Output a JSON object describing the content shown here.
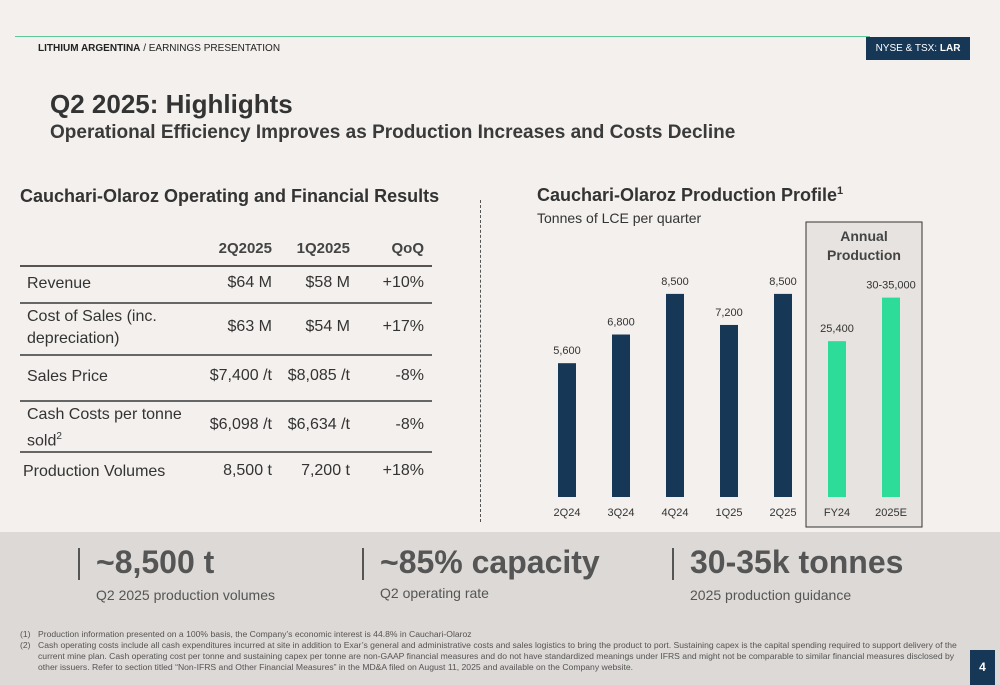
{
  "header": {
    "company": "LITHIUM ARGENTINA",
    "section": "/ EARNINGS PRESENTATION",
    "ticker_prefix": "NYSE & TSX:",
    "ticker": "LAR"
  },
  "title": "Q2 2025: Highlights",
  "subtitle": "Operational Efficiency Improves as Production Increases and Costs Decline",
  "table": {
    "title": "Cauchari-Olaroz Operating and Financial Results",
    "columns": [
      "2Q2025",
      "1Q2025",
      "QoQ"
    ],
    "rows": [
      {
        "label": [
          "Revenue"
        ],
        "cells": [
          "$64 M",
          "$58 M",
          "+10%"
        ]
      },
      {
        "label": [
          "Cost of Sales (inc.",
          "depreciation)"
        ],
        "cells": [
          "$63 M",
          "$54 M",
          "+17%"
        ]
      },
      {
        "label": [
          "Sales Price"
        ],
        "cells": [
          "$7,400 /t",
          "$8,085 /t",
          "-8%"
        ]
      },
      {
        "label": [
          "Cash Costs per tonne",
          "sold"
        ],
        "note": "2",
        "cells": [
          "$6,098 /t",
          "$6,634 /t",
          "-8%"
        ]
      },
      {
        "label": [
          "Production Volumes"
        ],
        "cells": [
          "8,500 t",
          "7,200 t",
          "+18%"
        ]
      }
    ]
  },
  "chart_data": {
    "type": "bar",
    "title": "Cauchari-Olaroz Production Profile",
    "title_note": "1",
    "subtitle": "Tonnes of LCE per quarter",
    "annotation": [
      "Annual",
      "Production"
    ],
    "categories": [
      "2Q24",
      "3Q24",
      "4Q24",
      "1Q25",
      "2Q25",
      "FY24",
      "2025E"
    ],
    "ylim": [
      0,
      9500
    ],
    "y2lim": [
      0,
      37000
    ],
    "series": [
      {
        "color": "#173756",
        "values": [
          5600,
          6800,
          8500,
          7200,
          8500,
          null,
          null
        ],
        "value_labels": [
          "5,600",
          "6,800",
          "8,500",
          "7,200",
          "8,500",
          null,
          null
        ]
      },
      {
        "color": "#2ddc98",
        "axis": "y2",
        "values": [
          null,
          null,
          null,
          null,
          null,
          25400,
          32500
        ],
        "value_labels": [
          null,
          null,
          null,
          null,
          null,
          "25,400",
          "30-35,000"
        ]
      }
    ]
  },
  "kpis": [
    {
      "value": "~8,500 t",
      "label": "Q2 2025 production volumes"
    },
    {
      "value": "~85% capacity",
      "label": "Q2 operating rate"
    },
    {
      "value": "30-35k tonnes",
      "label": "2025 production guidance"
    }
  ],
  "footnotes": [
    {
      "marker": "(1)",
      "text": "Production information presented on a 100% basis, the Company’s economic interest is 44.8% in Cauchari-Olaroz"
    },
    {
      "marker": "(2)",
      "text": "Cash operating costs include all cash expenditures incurred at site in addition to Exar’s general and administrative costs and sales logistics to bring the product to port. Sustaining capex is the capital spending required to support delivery of the current mine plan. Cash operating cost per tonne and sustaining capex per tonne are non-GAAP financial measures and do not have standardized meanings under IFRS and might not be comparable to similar financial measures disclosed by other issuers. Refer to section titled “Non-IFRS and Other Financial Measures” in the MD&A filed on August 11, 2025 and available on the Company website."
    }
  ],
  "page_number": "4"
}
